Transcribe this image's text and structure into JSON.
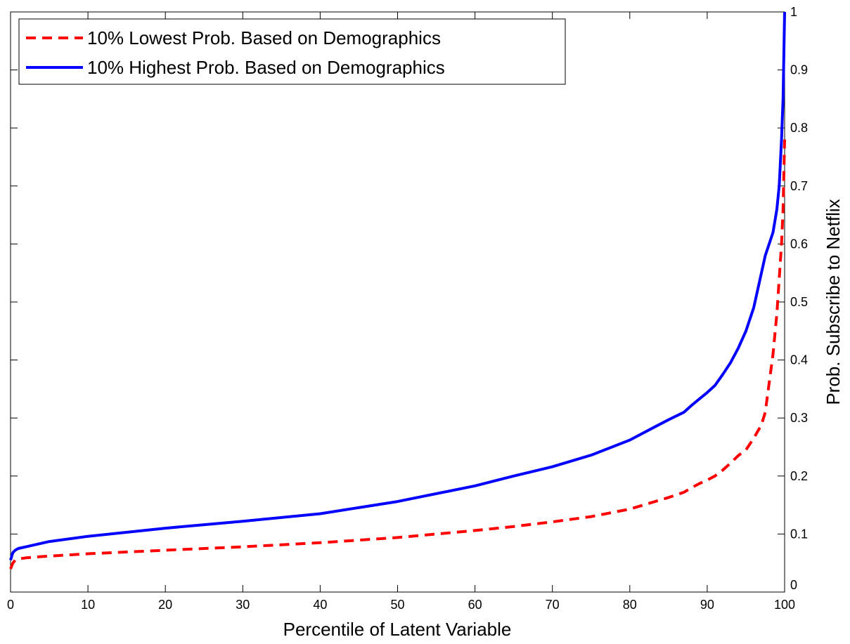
{
  "chart_data": {
    "type": "line",
    "xlabel": "Percentile of Latent Variable",
    "ylabel": "Prob. Subscribe to Netflix",
    "xlim": [
      0,
      100
    ],
    "ylim": [
      0,
      1
    ],
    "xticks": [
      "0",
      "10",
      "20",
      "30",
      "40",
      "50",
      "60",
      "70",
      "80",
      "90",
      "100"
    ],
    "yticks": [
      "0",
      "0.1",
      "0.2",
      "0.3",
      "0.4",
      "0.5",
      "0.6",
      "0.7",
      "0.8",
      "0.9",
      "1"
    ],
    "y_axis_side": "right",
    "grid": false,
    "legend_position": "top-left",
    "series": [
      {
        "name": "10% Lowest Prob. Based on Demographics",
        "color": "#ff0000",
        "dash": "dashed",
        "x": [
          0,
          0.3,
          0.6,
          1,
          2,
          3,
          5,
          10,
          20,
          30,
          40,
          50,
          60,
          65,
          70,
          75,
          80,
          83,
          85,
          87,
          88,
          89,
          90,
          91,
          92,
          93,
          94,
          95,
          96,
          97,
          97.5,
          98,
          98.5,
          99,
          99.3,
          99.6,
          99.8,
          100
        ],
        "y": [
          0.04,
          0.05,
          0.055,
          0.057,
          0.059,
          0.06,
          0.062,
          0.066,
          0.072,
          0.078,
          0.085,
          0.094,
          0.106,
          0.113,
          0.121,
          0.13,
          0.143,
          0.155,
          0.163,
          0.172,
          0.18,
          0.187,
          0.193,
          0.2,
          0.21,
          0.222,
          0.235,
          0.245,
          0.265,
          0.288,
          0.31,
          0.36,
          0.41,
          0.48,
          0.54,
          0.6,
          0.66,
          0.78
        ]
      },
      {
        "name": "10% Highest Prob. Based on Demographics",
        "color": "#0000ff",
        "dash": "solid",
        "x": [
          0,
          0.3,
          0.6,
          1,
          2,
          3,
          5,
          10,
          20,
          30,
          40,
          50,
          60,
          65,
          70,
          75,
          80,
          83,
          85,
          87,
          88,
          89,
          90,
          91,
          92,
          93,
          94,
          95,
          96,
          97,
          97.5,
          98,
          98.5,
          99,
          99.3,
          99.6,
          99.8,
          100
        ],
        "y": [
          0.055,
          0.068,
          0.072,
          0.075,
          0.078,
          0.081,
          0.087,
          0.096,
          0.11,
          0.122,
          0.135,
          0.156,
          0.183,
          0.2,
          0.216,
          0.236,
          0.262,
          0.283,
          0.297,
          0.31,
          0.322,
          0.333,
          0.344,
          0.356,
          0.375,
          0.395,
          0.42,
          0.45,
          0.49,
          0.55,
          0.58,
          0.6,
          0.62,
          0.66,
          0.7,
          0.78,
          0.85,
          1.0
        ]
      }
    ]
  }
}
